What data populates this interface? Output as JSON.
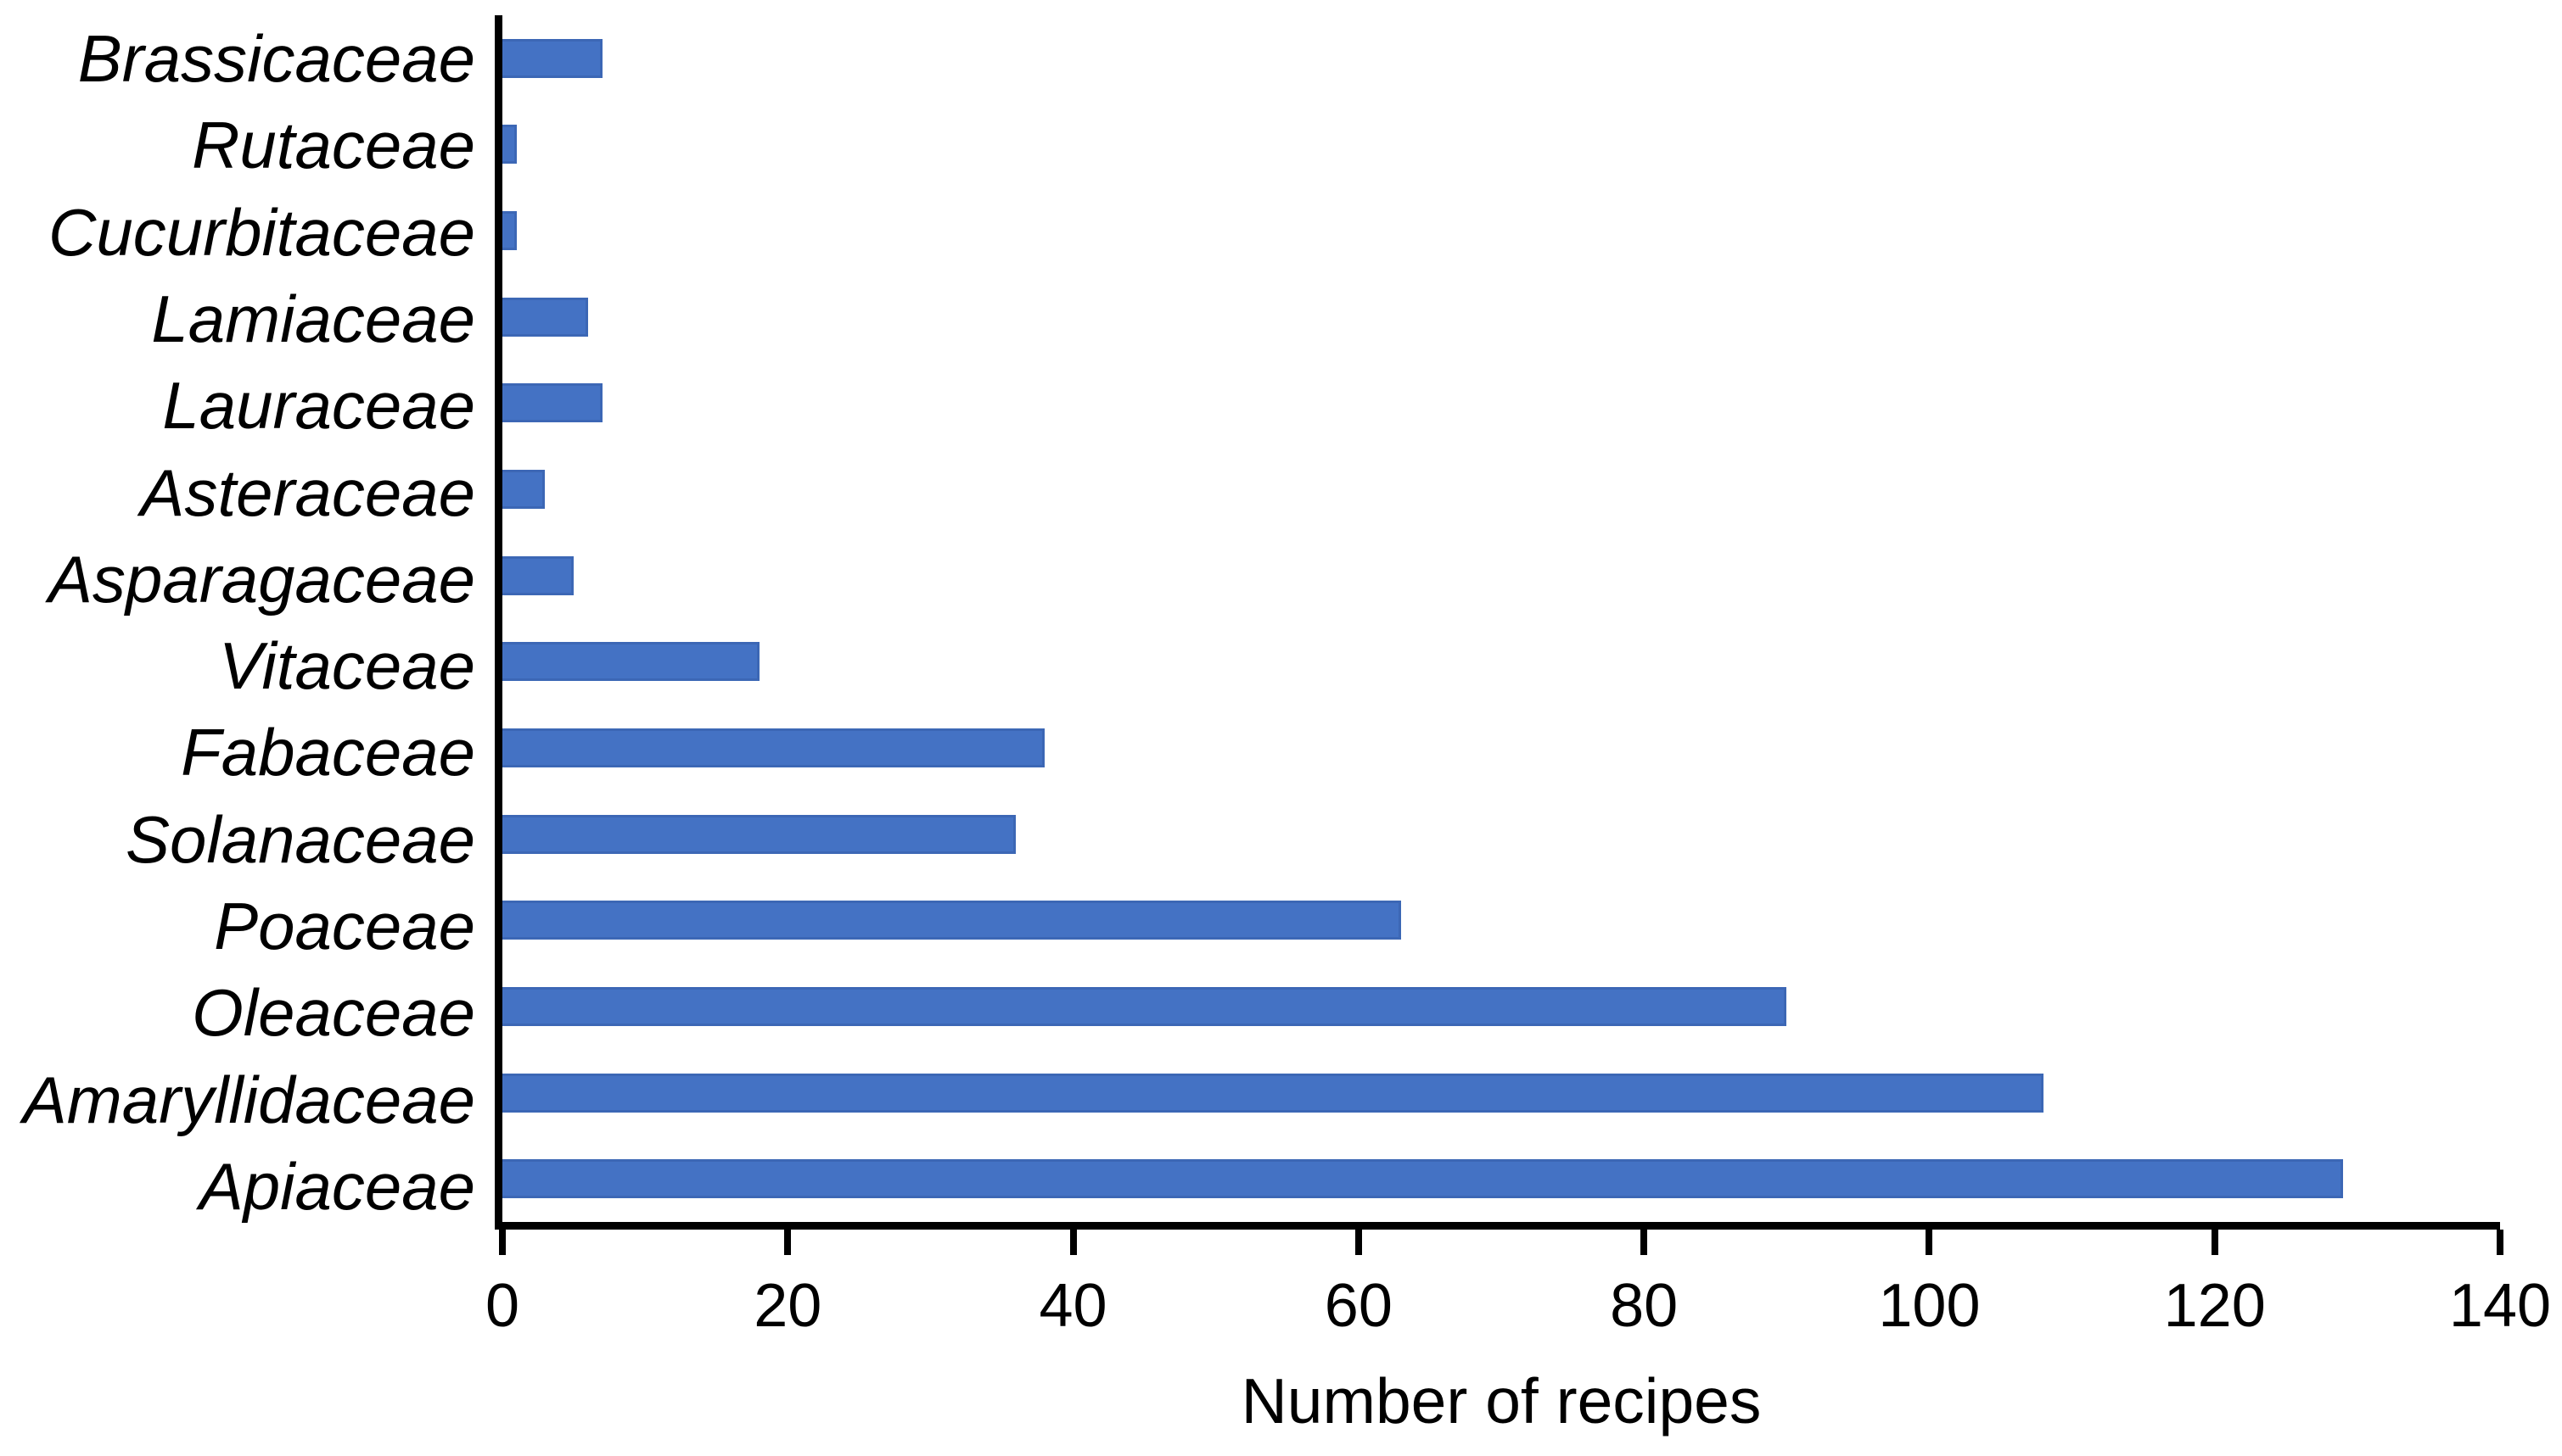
{
  "page": {
    "background": "#ffffff"
  },
  "chart_data": {
    "type": "bar",
    "orientation": "horizontal",
    "categories": [
      "Brassicaceae",
      "Rutaceae",
      "Cucurbitaceae",
      "Lamiaceae",
      "Lauraceae",
      "Asteraceae",
      "Asparagaceae",
      "Vitaceae",
      "Fabaceae",
      "Solanaceae",
      "Poaceae",
      "Oleaceae",
      "Amaryllidaceae",
      "Apiaceae"
    ],
    "values": [
      7,
      1,
      1,
      6,
      7,
      3,
      5,
      18,
      38,
      36,
      63,
      90,
      108,
      129
    ],
    "title": "",
    "xlabel": "Number of recipes",
    "ylabel": "",
    "xlim": [
      0,
      140
    ],
    "x_ticks": [
      0,
      20,
      40,
      60,
      80,
      100,
      120,
      140
    ],
    "grid": false,
    "legend": false,
    "bar_color": "#4472C4",
    "axis_color": "#000000",
    "label_style": "italic"
  }
}
